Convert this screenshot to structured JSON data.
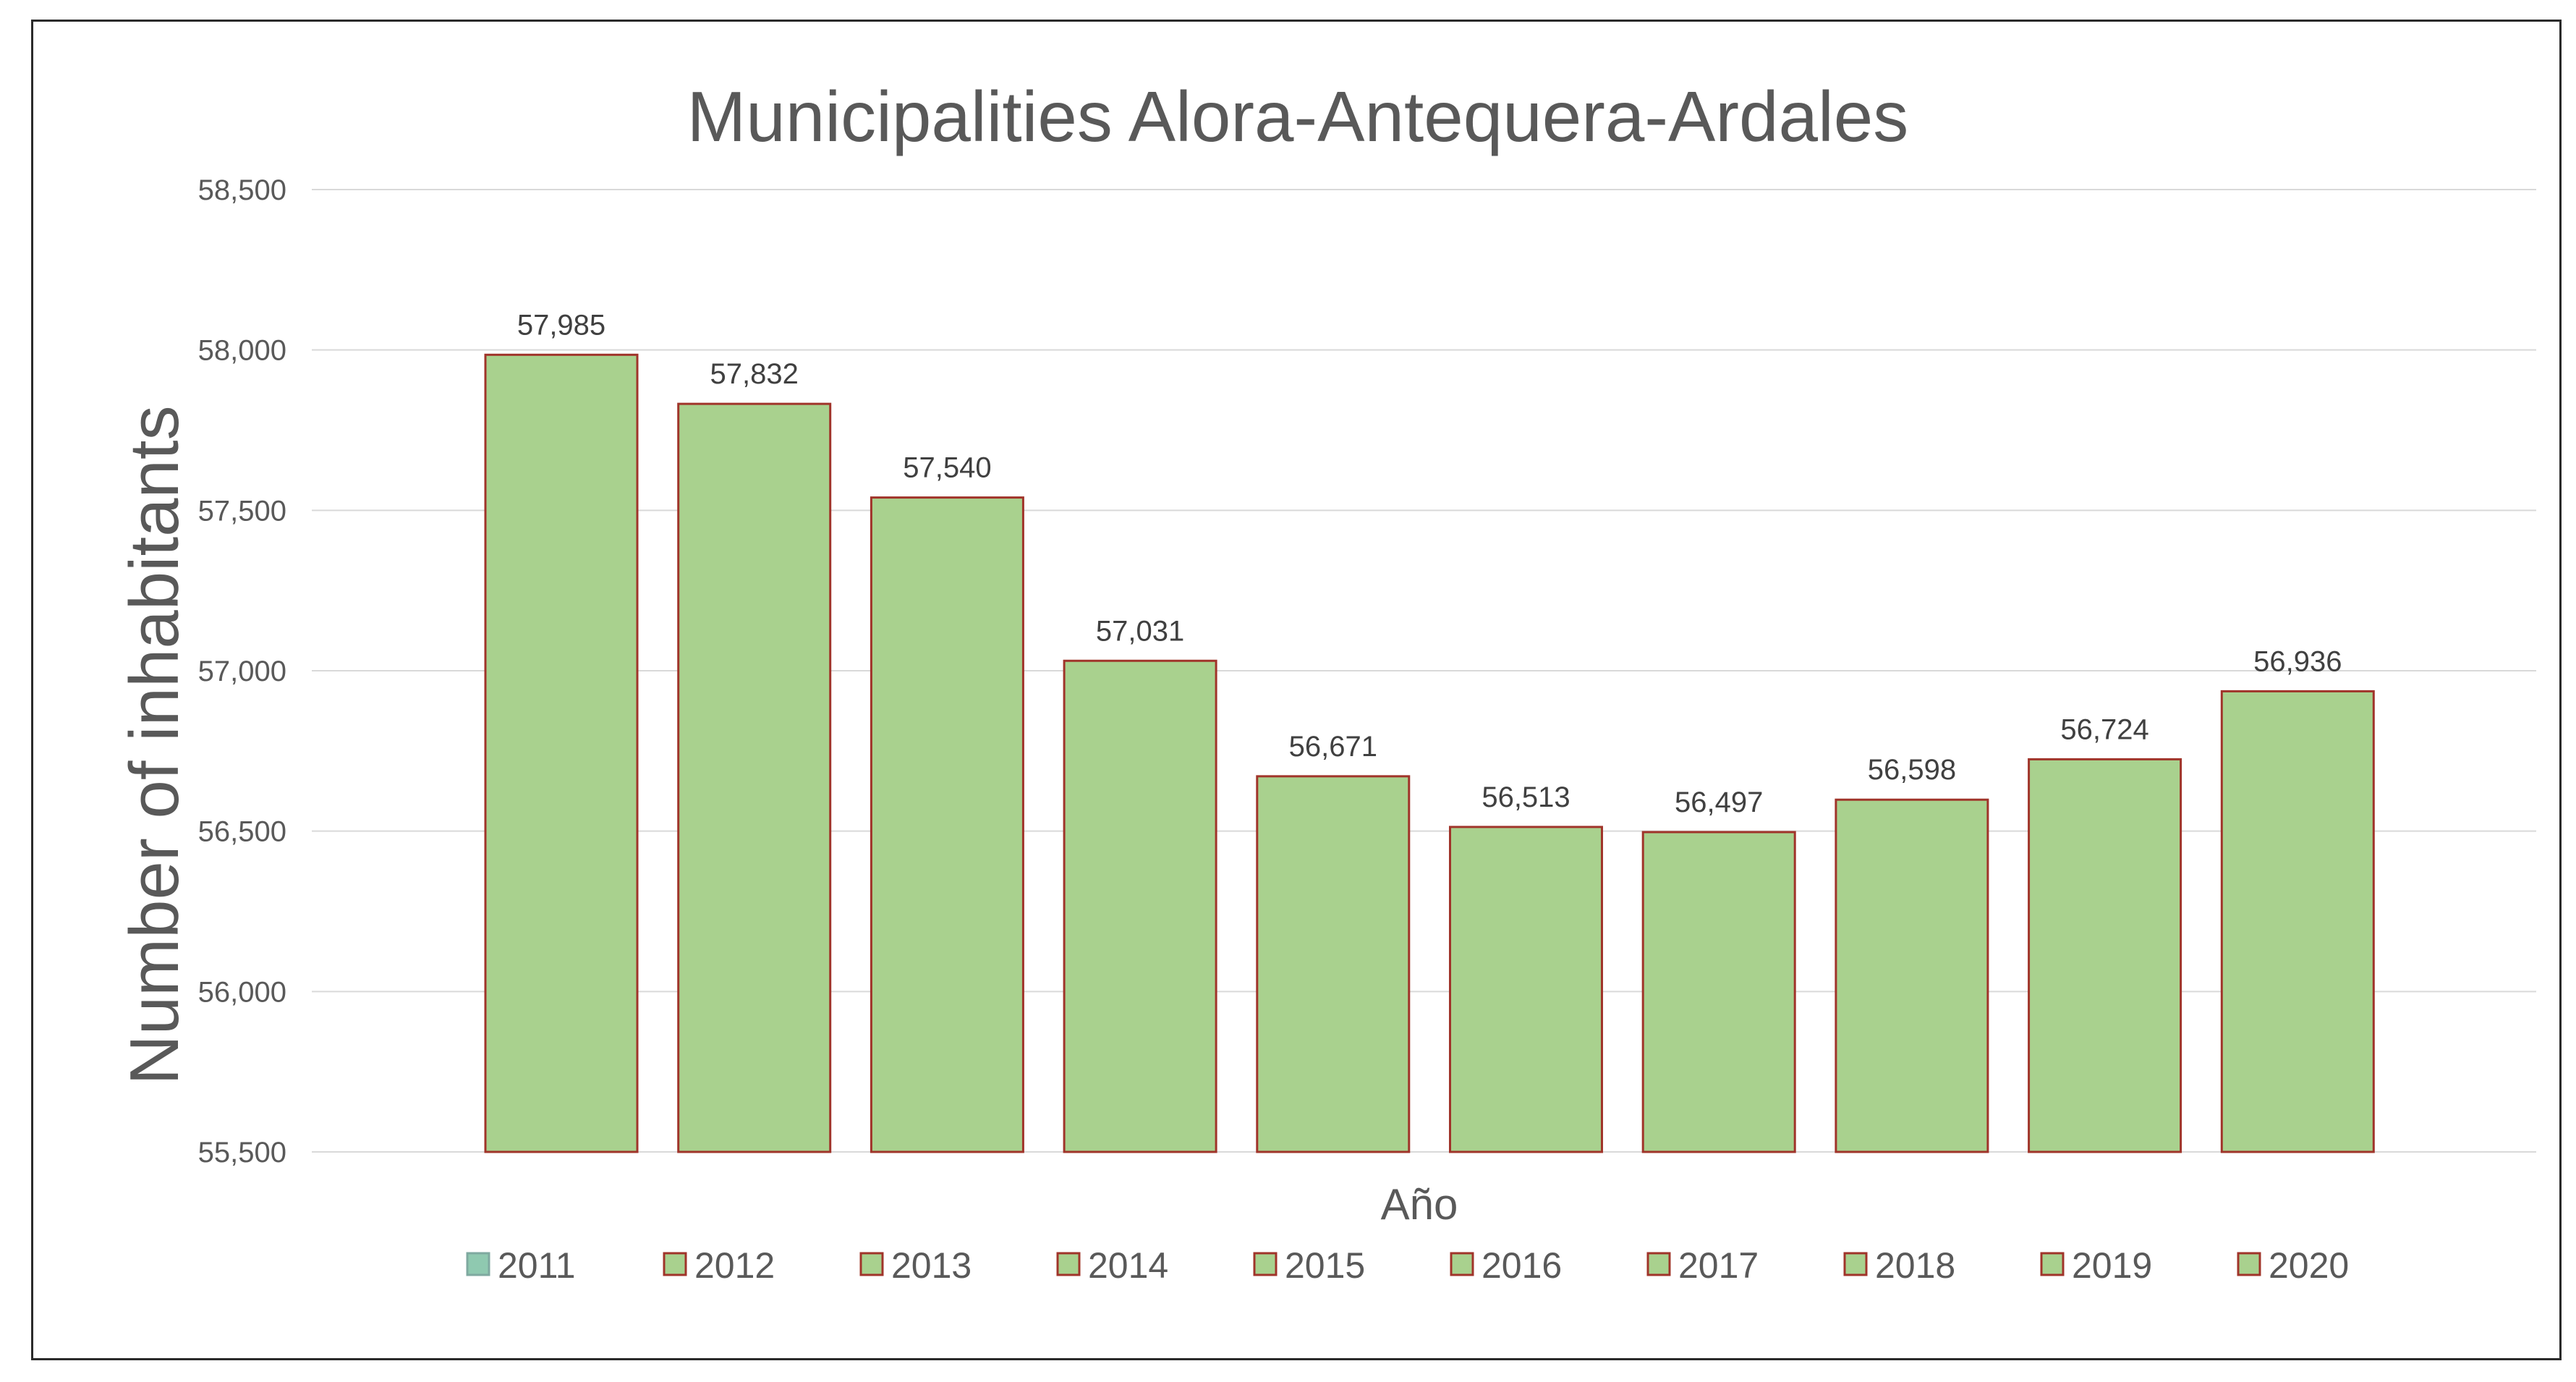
{
  "chart_data": {
    "type": "bar",
    "title": "Municipalities  Alora-Antequera-Ardales",
    "xlabel": "Año",
    "ylabel": "Number of inhabitants",
    "ylim": [
      55500,
      58500
    ],
    "ytick_step": 500,
    "yticks": [
      "55,500",
      "56,000",
      "56,500",
      "57,000",
      "57,500",
      "58,000",
      "58,500"
    ],
    "grid": true,
    "legend_position": "bottom",
    "categories": [
      "2011",
      "2012",
      "2013",
      "2014",
      "2015",
      "2016",
      "2017",
      "2018",
      "2019",
      "2020"
    ],
    "values": [
      57985,
      57832,
      57540,
      57031,
      56671,
      56513,
      56497,
      56598,
      56724,
      56936
    ],
    "data_labels": [
      "57,985",
      "57,832",
      "57,540",
      "57,031",
      "56,671",
      "56,513",
      "56,497",
      "56,598",
      "56,724",
      "56,936"
    ],
    "legend_entries": [
      "2011",
      "2012",
      "2013",
      "2014",
      "2015",
      "2016",
      "2017",
      "2018",
      "2019",
      "2020"
    ],
    "colors": {
      "bar_fill": "#a9d18e",
      "bar_stroke": "#a0342a",
      "legend_first_fill": "#8fc9b0",
      "legend_first_stroke": "#7fa9a0"
    }
  }
}
